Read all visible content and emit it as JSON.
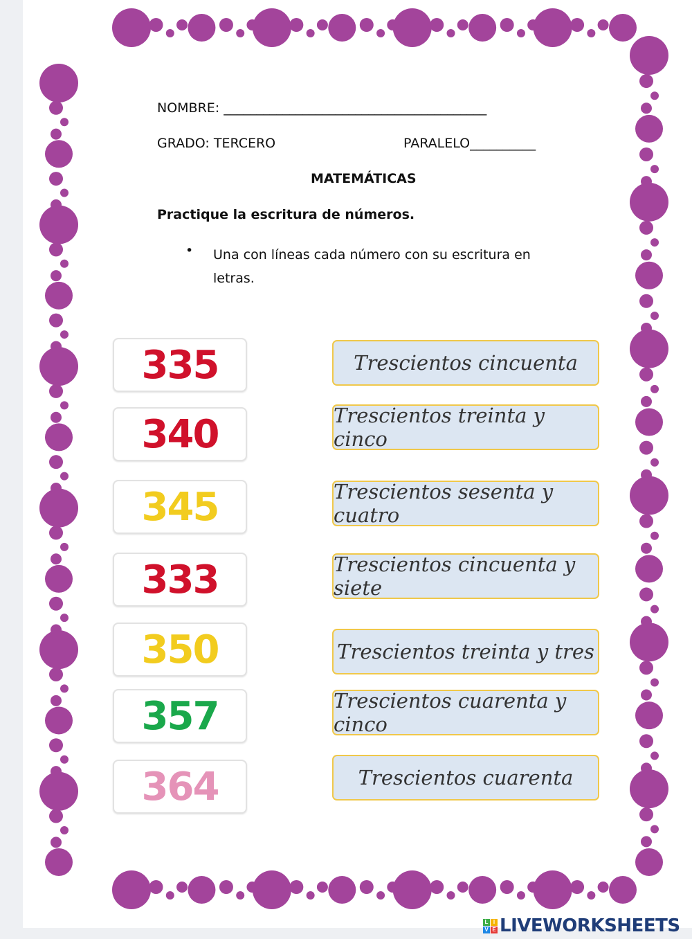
{
  "header": {
    "name_label": "NOMBRE: ________________________________________",
    "grade_label": "GRADO: TERCERO",
    "paralelo_label": "PARALELO__________",
    "subject": "MATEMÁTICAS",
    "instruction_title": "Practique la escritura de números.",
    "bullet": "Una con líneas cada número con su escritura en letras."
  },
  "numbers": [
    {
      "value": "335",
      "color": "#d0112b"
    },
    {
      "value": "340",
      "color": "#d0112b"
    },
    {
      "value": "345",
      "color": "#f2cc1f"
    },
    {
      "value": "333",
      "color": "#d0112b"
    },
    {
      "value": "350",
      "color": "#f2cc1f"
    },
    {
      "value": "357",
      "color": "#1aa84b"
    },
    {
      "value": "364",
      "color": "#e593b8"
    }
  ],
  "words": [
    "Trescientos cincuenta",
    "Trescientos treinta y cinco",
    "Trescientos sesenta y cuatro",
    "Trescientos cincuenta y siete",
    "Trescientos treinta y tres",
    "Trescientos cuarenta y cinco",
    "Trescientos cuarenta"
  ],
  "border_color": "#a3449b",
  "logo": {
    "text": "LIVEWORKSHEETS",
    "mark": [
      "L",
      "I",
      "V",
      "E"
    ]
  }
}
